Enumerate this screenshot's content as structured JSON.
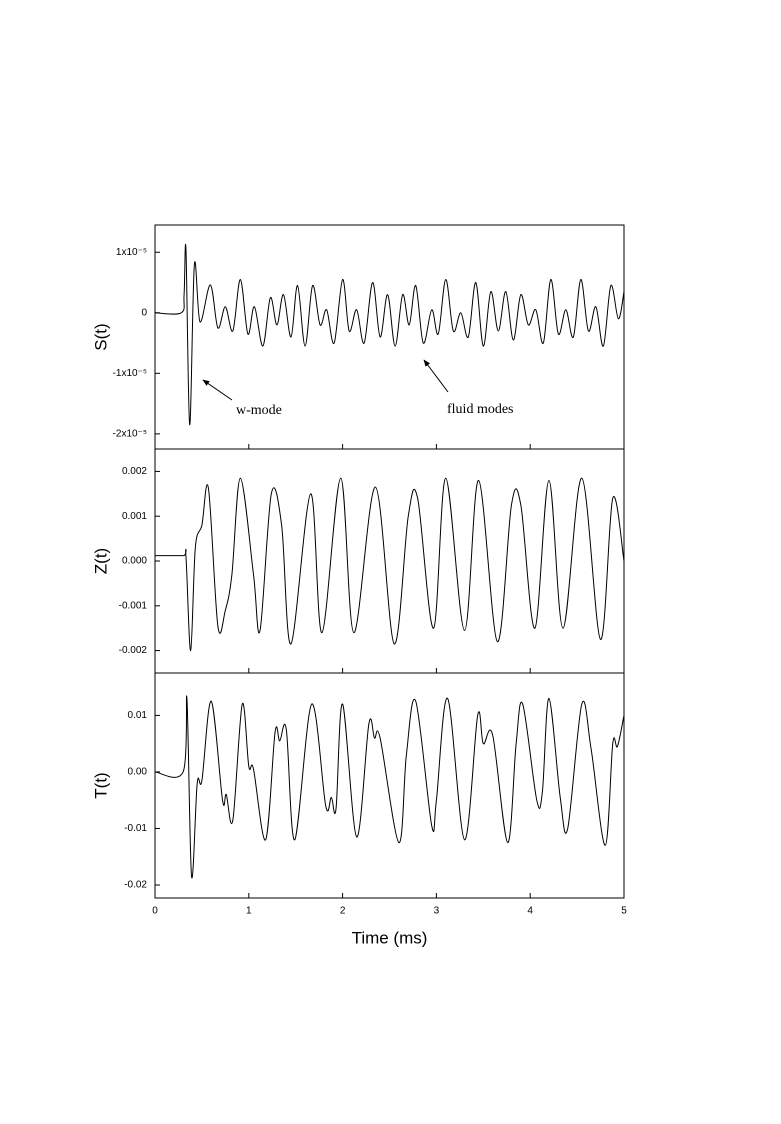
{
  "chart_data": [
    {
      "type": "line",
      "y_label": "S(t)",
      "color": "#000000",
      "annotations": [
        "w-mode",
        "fluid modes"
      ],
      "xlim": [
        0,
        5
      ],
      "xticks": [
        0,
        1,
        2,
        3,
        4,
        5
      ],
      "ylim": [
        -2.25e-05,
        1.45e-05
      ],
      "yticks": [
        {
          "value": 1e-05,
          "label": "1x10⁻⁵"
        },
        0,
        {
          "value": -1e-05,
          "label": "-1x10⁻⁵"
        },
        {
          "value": -2e-05,
          "label": "-2x10⁻⁵"
        }
      ],
      "x": [
        0,
        0.28,
        0.31,
        0.33,
        0.37,
        0.42,
        0.48,
        0.59,
        0.67,
        0.75,
        0.83,
        0.91,
        0.99,
        1.06,
        1.15,
        1.23,
        1.3,
        1.37,
        1.45,
        1.52,
        1.6,
        1.68,
        1.76,
        1.83,
        1.91,
        2.0,
        2.07,
        2.15,
        2.23,
        2.32,
        2.4,
        2.48,
        2.56,
        2.64,
        2.71,
        2.78,
        2.86,
        2.95,
        3.02,
        3.1,
        3.18,
        3.26,
        3.34,
        3.42,
        3.5,
        3.58,
        3.66,
        3.74,
        3.82,
        3.9,
        3.98,
        4.06,
        4.14,
        4.22,
        4.3,
        4.38,
        4.46,
        4.54,
        4.62,
        4.7,
        4.78,
        4.86,
        4.94,
        5.0
      ],
      "values": [
        0,
        0,
        3e-06,
        1.05e-05,
        -1.85e-05,
        8e-06,
        -1.5e-06,
        4.6e-06,
        -2.5e-06,
        1e-06,
        -3e-06,
        5.5e-06,
        -3.5e-06,
        1e-06,
        -5.5e-06,
        2.5e-06,
        -2e-06,
        3e-06,
        -4e-06,
        4.5e-06,
        -5.5e-06,
        4.5e-06,
        -2e-06,
        5e-07,
        -5e-06,
        5.5e-06,
        -3e-06,
        5e-07,
        -5e-06,
        5e-06,
        -4e-06,
        3e-06,
        -5.5e-06,
        3e-06,
        -2e-06,
        4.5e-06,
        -5e-06,
        5e-07,
        -3.5e-06,
        5.5e-06,
        -3e-06,
        0,
        -4e-06,
        5e-06,
        -5.5e-06,
        3.5e-06,
        -3e-06,
        3.5e-06,
        -4.5e-06,
        3e-06,
        -2e-06,
        5e-07,
        -5e-06,
        5.5e-06,
        -3.5e-06,
        5e-07,
        -4e-06,
        5.5e-06,
        -3e-06,
        1e-06,
        -5.5e-06,
        4.5e-06,
        -1e-06,
        3.5e-06
      ]
    },
    {
      "type": "line",
      "y_label": "Z(t)",
      "color": "#000000",
      "xlim": [
        0,
        5
      ],
      "xticks": [
        0,
        1,
        2,
        3,
        4,
        5
      ],
      "ylim": [
        -0.0025,
        0.0025
      ],
      "yticks": [
        0.002,
        0.001,
        {
          "value": 0,
          "label": "0.000"
        },
        -0.001,
        -0.002
      ],
      "x": [
        0,
        0.3,
        0.33,
        0.38,
        0.43,
        0.5,
        0.57,
        0.67,
        0.75,
        0.82,
        0.91,
        1.05,
        1.12,
        1.24,
        1.35,
        1.45,
        1.66,
        1.78,
        1.98,
        2.12,
        2.35,
        2.55,
        2.7,
        2.8,
        2.97,
        3.1,
        3.3,
        3.45,
        3.65,
        3.8,
        3.9,
        4.05,
        4.2,
        4.35,
        4.55,
        4.75,
        4.88,
        5.0
      ],
      "values": [
        0.00012,
        0.00012,
        0.0001,
        -0.002,
        0.0003,
        0.0008,
        0.00162,
        -0.00145,
        -0.0011,
        -0.0003,
        0.00185,
        -0.0003,
        -0.00155,
        0.0015,
        0.0008,
        -0.00185,
        0.0015,
        -0.0016,
        0.00185,
        -0.0016,
        0.00165,
        -0.00185,
        0.001,
        0.0014,
        -0.0015,
        0.00185,
        -0.00155,
        0.0018,
        -0.0018,
        0.00125,
        0.00125,
        -0.0015,
        0.0018,
        -0.0015,
        0.00185,
        -0.00175,
        0.0014,
        0
      ]
    },
    {
      "type": "line",
      "y_label": "T(t)",
      "x_label": "Time (ms)",
      "color": "#000000",
      "xlim": [
        0,
        5
      ],
      "xticks": [
        0,
        1,
        2,
        3,
        4,
        5
      ],
      "ylim": [
        -0.0223,
        0.0175
      ],
      "yticks": [
        0.01,
        {
          "value": 0,
          "label": "0.00"
        },
        -0.01,
        -0.02
      ],
      "x": [
        0,
        0.3,
        0.34,
        0.39,
        0.45,
        0.5,
        0.6,
        0.72,
        0.76,
        0.83,
        0.93,
        1.0,
        1.05,
        1.18,
        1.28,
        1.33,
        1.4,
        1.49,
        1.67,
        1.82,
        1.88,
        1.93,
        2.0,
        2.15,
        2.28,
        2.34,
        2.4,
        2.6,
        2.68,
        2.78,
        2.95,
        3.0,
        3.12,
        3.3,
        3.44,
        3.5,
        3.6,
        3.76,
        3.85,
        3.92,
        4.07,
        4.13,
        4.2,
        4.32,
        4.4,
        4.55,
        4.65,
        4.8,
        4.88,
        4.93,
        5.0
      ],
      "values": [
        0,
        0,
        0.013,
        -0.0185,
        -0.002,
        -0.0015,
        0.0125,
        -0.005,
        -0.004,
        -0.0085,
        0.012,
        0.001,
        0.0005,
        -0.012,
        0.007,
        0.0055,
        0.0075,
        -0.012,
        0.012,
        -0.006,
        -0.0045,
        -0.0065,
        0.012,
        -0.0115,
        0.0085,
        0.006,
        0.006,
        -0.0125,
        0.003,
        0.0125,
        -0.0095,
        -0.005,
        0.013,
        -0.012,
        0.01,
        0.005,
        0.0065,
        -0.0125,
        0.005,
        0.012,
        -0.005,
        -0.0035,
        0.013,
        -0.0045,
        -0.01,
        0.012,
        0.004,
        -0.013,
        0.005,
        0.0045,
        0.01
      ]
    }
  ]
}
